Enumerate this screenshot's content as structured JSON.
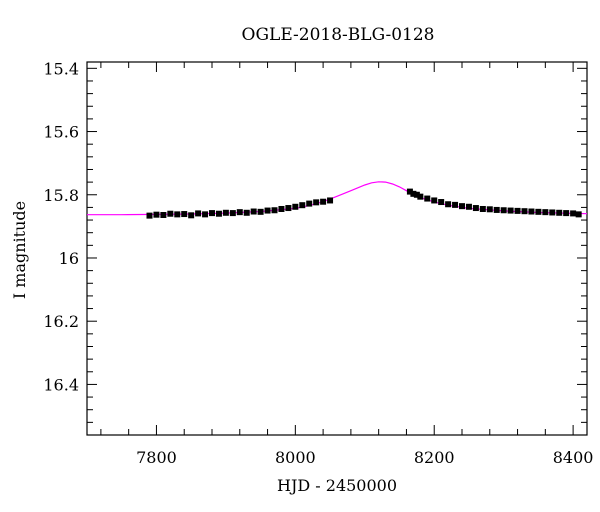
{
  "chart_data": {
    "type": "scatter",
    "title": "OGLE-2018-BLG-0128",
    "xlabel": "HJD - 2450000",
    "ylabel": "I magnitude",
    "xlim": [
      7700,
      8420
    ],
    "ylim": [
      16.56,
      15.38
    ],
    "y_inverted": true,
    "xticks": [
      7800,
      8000,
      8200,
      8400
    ],
    "xtick_labels": [
      "7800",
      "8000",
      "8200",
      "8400"
    ],
    "yticks": [
      15.4,
      15.6,
      15.8,
      16,
      16.2,
      16.4
    ],
    "ytick_labels": [
      "15.4",
      "15.6",
      "15.8",
      "16",
      "16.2",
      "16.4"
    ],
    "grid": false,
    "legend": "none",
    "colors": {
      "data": "#000000",
      "model": "#ff00ff"
    },
    "series": [
      {
        "kind": "points",
        "values": [
          [
            7790,
            15.866
          ],
          [
            7800,
            15.863
          ],
          [
            7810,
            15.864
          ],
          [
            7820,
            15.86
          ],
          [
            7830,
            15.862
          ],
          [
            7840,
            15.861
          ],
          [
            7850,
            15.865
          ],
          [
            7860,
            15.859
          ],
          [
            7870,
            15.862
          ],
          [
            7880,
            15.858
          ],
          [
            7890,
            15.86
          ],
          [
            7900,
            15.857
          ],
          [
            7910,
            15.858
          ],
          [
            7920,
            15.855
          ],
          [
            7930,
            15.857
          ],
          [
            7940,
            15.853
          ],
          [
            7950,
            15.854
          ],
          [
            7960,
            15.85
          ],
          [
            7970,
            15.849
          ],
          [
            7980,
            15.845
          ],
          [
            7990,
            15.842
          ],
          [
            8000,
            15.838
          ],
          [
            8010,
            15.833
          ],
          [
            8020,
            15.828
          ],
          [
            8030,
            15.824
          ],
          [
            8040,
            15.822
          ],
          [
            8050,
            15.818
          ],
          [
            8165,
            15.79
          ],
          [
            8170,
            15.797
          ],
          [
            8175,
            15.8
          ],
          [
            8180,
            15.806
          ],
          [
            8190,
            15.812
          ],
          [
            8200,
            15.818
          ],
          [
            8210,
            15.823
          ],
          [
            8220,
            15.83
          ],
          [
            8230,
            15.832
          ],
          [
            8240,
            15.836
          ],
          [
            8250,
            15.838
          ],
          [
            8260,
            15.842
          ],
          [
            8270,
            15.845
          ],
          [
            8280,
            15.846
          ],
          [
            8290,
            15.848
          ],
          [
            8300,
            15.849
          ],
          [
            8310,
            15.85
          ],
          [
            8320,
            15.851
          ],
          [
            8330,
            15.852
          ],
          [
            8340,
            15.853
          ],
          [
            8350,
            15.854
          ],
          [
            8360,
            15.855
          ],
          [
            8370,
            15.856
          ],
          [
            8380,
            15.857
          ],
          [
            8390,
            15.858
          ],
          [
            8400,
            15.859
          ],
          [
            8408,
            15.862
          ]
        ]
      },
      {
        "kind": "model",
        "values": [
          [
            7700,
            15.863
          ],
          [
            7750,
            15.863
          ],
          [
            7800,
            15.862
          ],
          [
            7850,
            15.861
          ],
          [
            7900,
            15.858
          ],
          [
            7950,
            15.853
          ],
          [
            8000,
            15.843
          ],
          [
            8020,
            15.834
          ],
          [
            8040,
            15.822
          ],
          [
            8060,
            15.805
          ],
          [
            8080,
            15.787
          ],
          [
            8100,
            15.769
          ],
          [
            8110,
            15.762
          ],
          [
            8120,
            15.759
          ],
          [
            8130,
            15.76
          ],
          [
            8140,
            15.766
          ],
          [
            8150,
            15.775
          ],
          [
            8160,
            15.787
          ],
          [
            8170,
            15.799
          ],
          [
            8180,
            15.809
          ],
          [
            8200,
            15.823
          ],
          [
            8220,
            15.833
          ],
          [
            8250,
            15.843
          ],
          [
            8300,
            15.851
          ],
          [
            8350,
            15.856
          ],
          [
            8400,
            15.859
          ],
          [
            8420,
            15.86
          ]
        ]
      }
    ]
  }
}
